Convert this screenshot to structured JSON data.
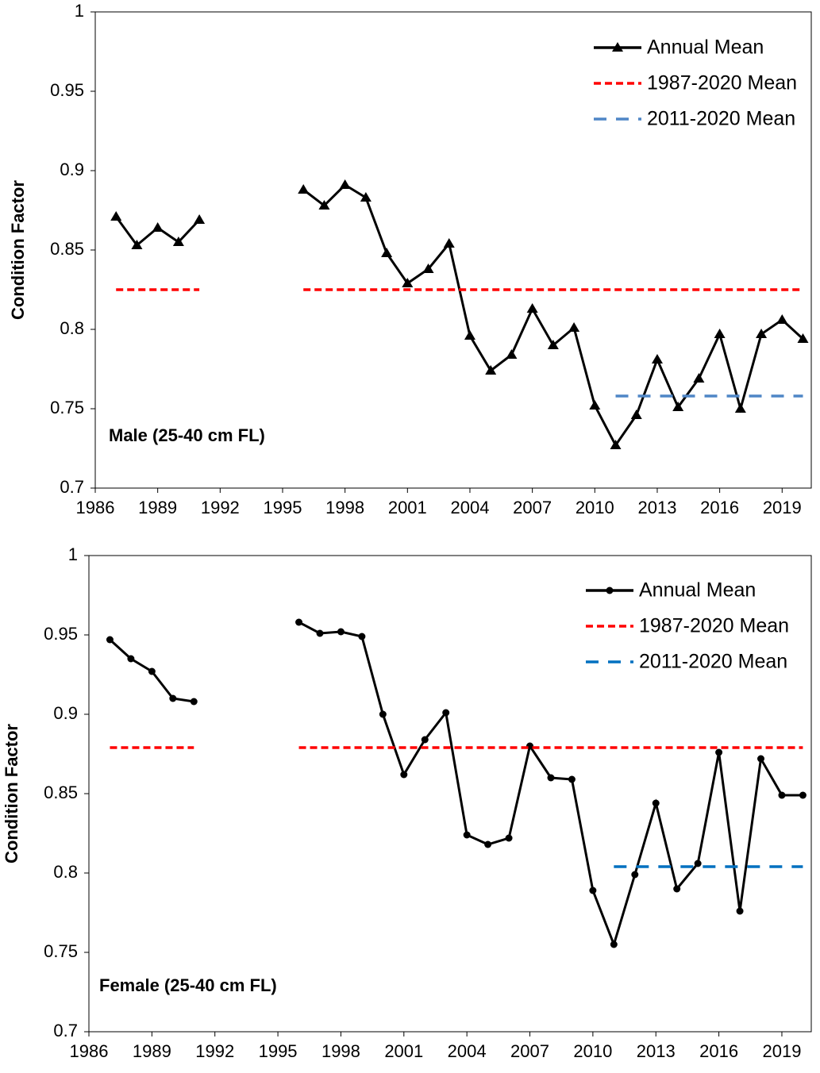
{
  "chart_data": [
    {
      "type": "line",
      "ylabel": "Condition Factor",
      "annotation": "Male (25-40 cm FL)",
      "x": [
        1987,
        1988,
        1989,
        1990,
        1991,
        1992,
        1993,
        1994,
        1995,
        1996,
        1997,
        1998,
        1999,
        2000,
        2001,
        2002,
        2003,
        2004,
        2005,
        2006,
        2007,
        2008,
        2009,
        2010,
        2011,
        2012,
        2013,
        2014,
        2015,
        2016,
        2017,
        2018,
        2019,
        2020
      ],
      "xlim": [
        1986,
        2020.4
      ],
      "xticks": [
        1986,
        1989,
        1992,
        1995,
        1998,
        2001,
        2004,
        2007,
        2010,
        2013,
        2016,
        2019
      ],
      "ylim": [
        0.7,
        1
      ],
      "yticks": [
        0.7,
        0.75,
        0.8,
        0.85,
        0.9,
        0.95,
        1
      ],
      "series": [
        {
          "name": "Annual Mean",
          "color": "#000000",
          "marker": "triangle",
          "line_style": "solid",
          "values": [
            0.871,
            0.853,
            0.864,
            0.855,
            0.869,
            null,
            null,
            null,
            null,
            0.888,
            0.878,
            0.891,
            0.883,
            0.848,
            0.829,
            0.838,
            0.854,
            0.796,
            0.774,
            0.784,
            0.813,
            0.79,
            0.801,
            0.752,
            0.727,
            0.746,
            0.781,
            0.751,
            0.769,
            0.797,
            0.75,
            0.797,
            0.806,
            0.794
          ]
        },
        {
          "name": "1987-2020 Mean",
          "color": "#ff0000",
          "marker": "none",
          "line_style": "short-dash",
          "values": [
            0.825,
            0.825,
            0.825,
            0.825,
            0.825,
            null,
            null,
            null,
            null,
            0.825,
            0.825,
            0.825,
            0.825,
            0.825,
            0.825,
            0.825,
            0.825,
            0.825,
            0.825,
            0.825,
            0.825,
            0.825,
            0.825,
            0.825,
            0.825,
            0.825,
            0.825,
            0.825,
            0.825,
            0.825,
            0.825,
            0.825,
            0.825,
            0.825
          ]
        },
        {
          "name": "2011-2020 Mean",
          "color": "#4f86c6",
          "marker": "none",
          "line_style": "long-dash",
          "values": [
            null,
            null,
            null,
            null,
            null,
            null,
            null,
            null,
            null,
            null,
            null,
            null,
            null,
            null,
            null,
            null,
            null,
            null,
            null,
            null,
            null,
            null,
            null,
            null,
            0.758,
            0.758,
            0.758,
            0.758,
            0.758,
            0.758,
            0.758,
            0.758,
            0.758,
            0.758
          ]
        }
      ]
    },
    {
      "type": "line",
      "ylabel": "Condition Factor",
      "annotation": "Female (25-40 cm FL)",
      "x": [
        1987,
        1988,
        1989,
        1990,
        1991,
        1992,
        1993,
        1994,
        1995,
        1996,
        1997,
        1998,
        1999,
        2000,
        2001,
        2002,
        2003,
        2004,
        2005,
        2006,
        2007,
        2008,
        2009,
        2010,
        2011,
        2012,
        2013,
        2014,
        2015,
        2016,
        2017,
        2018,
        2019,
        2020
      ],
      "xlim": [
        1986,
        2020.4
      ],
      "xticks": [
        1986,
        1989,
        1992,
        1995,
        1998,
        2001,
        2004,
        2007,
        2010,
        2013,
        2016,
        2019
      ],
      "ylim": [
        0.7,
        1
      ],
      "yticks": [
        0.7,
        0.75,
        0.8,
        0.85,
        0.9,
        0.95,
        1
      ],
      "series": [
        {
          "name": "Annual Mean",
          "color": "#000000",
          "marker": "circle",
          "line_style": "solid",
          "values": [
            0.947,
            0.935,
            0.927,
            0.91,
            0.908,
            null,
            null,
            null,
            null,
            0.958,
            0.951,
            0.952,
            0.949,
            0.9,
            0.862,
            0.884,
            0.901,
            0.824,
            0.818,
            0.822,
            0.88,
            0.86,
            0.859,
            0.789,
            0.755,
            0.799,
            0.844,
            0.79,
            0.806,
            0.876,
            0.776,
            0.872,
            0.849,
            0.849
          ]
        },
        {
          "name": "1987-2020 Mean",
          "color": "#ff0000",
          "marker": "none",
          "line_style": "short-dash",
          "values": [
            0.879,
            0.879,
            0.879,
            0.879,
            0.879,
            null,
            null,
            null,
            null,
            0.879,
            0.879,
            0.879,
            0.879,
            0.879,
            0.879,
            0.879,
            0.879,
            0.879,
            0.879,
            0.879,
            0.879,
            0.879,
            0.879,
            0.879,
            0.879,
            0.879,
            0.879,
            0.879,
            0.879,
            0.879,
            0.879,
            0.879,
            0.879,
            0.879
          ]
        },
        {
          "name": "2011-2020 Mean",
          "color": "#0070c0",
          "marker": "none",
          "line_style": "long-dash",
          "values": [
            null,
            null,
            null,
            null,
            null,
            null,
            null,
            null,
            null,
            null,
            null,
            null,
            null,
            null,
            null,
            null,
            null,
            null,
            null,
            null,
            null,
            null,
            null,
            null,
            0.804,
            0.804,
            0.804,
            0.804,
            0.804,
            0.804,
            0.804,
            0.804,
            0.804,
            0.804
          ]
        }
      ]
    }
  ]
}
